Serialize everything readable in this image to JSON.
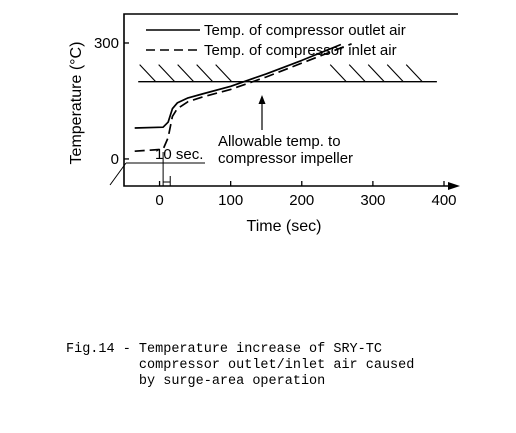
{
  "chart_data": {
    "type": "line",
    "xlabel": "Time (sec)",
    "ylabel": "Temperature (°C)",
    "xlim": [
      -50,
      400
    ],
    "ylim": [
      -70,
      375
    ],
    "x_ticks": [
      0,
      100,
      200,
      300,
      400
    ],
    "y_ticks": [
      0,
      300
    ],
    "grid": false,
    "legend": "top-center",
    "series": [
      {
        "name": "Temp. of compressor outlet air",
        "style": "solid",
        "x": [
          -35,
          5,
          12,
          18,
          25,
          40,
          60,
          100,
          150,
          200,
          255
        ],
        "y": [
          80,
          82,
          95,
          130,
          145,
          158,
          168,
          188,
          220,
          255,
          296
        ]
      },
      {
        "name": "Temp. of compressor inlet air",
        "style": "dashed",
        "x": [
          -35,
          5,
          12,
          18,
          25,
          40,
          60,
          100,
          150,
          200,
          270
        ],
        "y": [
          20,
          25,
          55,
          110,
          130,
          148,
          160,
          180,
          212,
          248,
          298
        ]
      }
    ],
    "threshold": {
      "label_line1": "Allowable temp. to",
      "label_line2": "compressor impeller",
      "value": 200,
      "x_start": -30,
      "x_end": 390
    },
    "annotation": {
      "label": "10 sec.",
      "x_start": 5,
      "x_end": 15
    }
  },
  "caption": {
    "line1": "Fig.14 - Temperature increase of SRY-TC",
    "line2": "         compressor outlet/inlet air caused",
    "line3": "         by surge-area operation"
  }
}
